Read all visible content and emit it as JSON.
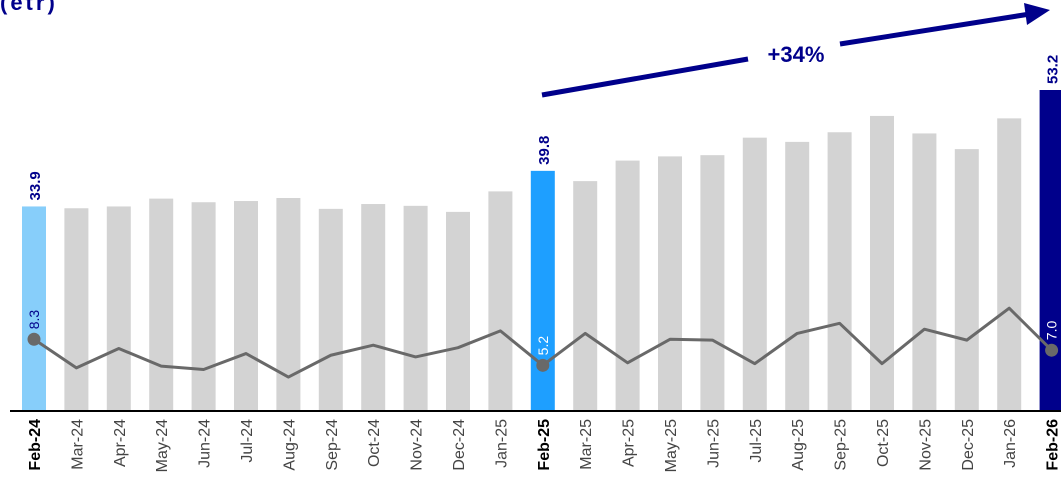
{
  "title_fragment": "(etr)",
  "chart_data": {
    "type": "bar",
    "categories": [
      "Feb-24",
      "Mar-24",
      "Apr-24",
      "May-24",
      "Jun-24",
      "Jul-24",
      "Aug-24",
      "Sep-24",
      "Oct-24",
      "Nov-24",
      "Dec-24",
      "Jan-25",
      "Feb-25",
      "Mar-25",
      "Apr-25",
      "May-25",
      "Jun-25",
      "Jul-25",
      "Aug-25",
      "Sep-25",
      "Oct-25",
      "Nov-25",
      "Dec-25",
      "Jan-26",
      "Feb-26"
    ],
    "series": [
      {
        "type": "bar",
        "values": [
          33.9,
          33.6,
          33.9,
          35.2,
          34.6,
          34.8,
          35.3,
          33.5,
          34.3,
          34.0,
          33.0,
          36.4,
          39.8,
          38.1,
          41.5,
          42.2,
          42.4,
          45.3,
          44.6,
          46.2,
          48.9,
          46.0,
          43.4,
          48.5,
          53.2
        ],
        "labels": {
          "0": "33.9",
          "12": "39.8",
          "24": "53.2"
        }
      },
      {
        "type": "line",
        "values": [
          8.3,
          4.9,
          7.2,
          5.1,
          4.7,
          6.6,
          3.8,
          6.4,
          7.6,
          6.2,
          7.3,
          9.3,
          5.2,
          9.0,
          5.5,
          8.3,
          8.2,
          5.4,
          9.0,
          10.2,
          5.4,
          9.5,
          8.2,
          12.0,
          7.0
        ],
        "labels": {
          "0": "8.3",
          "12": "5.2",
          "24": "7.0"
        }
      }
    ],
    "highlight_colors": {
      "0": "#87CEFA",
      "12": "#1E9FFF",
      "24": "#00008B"
    },
    "base_bar_color": "#D3D3D3",
    "line_color": "#696969",
    "annotation": {
      "text": "+34%",
      "from": "Feb-25",
      "to": "Feb-26",
      "color": "#00008B"
    },
    "ylim": [
      0,
      58
    ],
    "bold_categories": [
      "Feb-24",
      "Feb-25",
      "Feb-26"
    ],
    "grid": false,
    "legend": "none"
  }
}
